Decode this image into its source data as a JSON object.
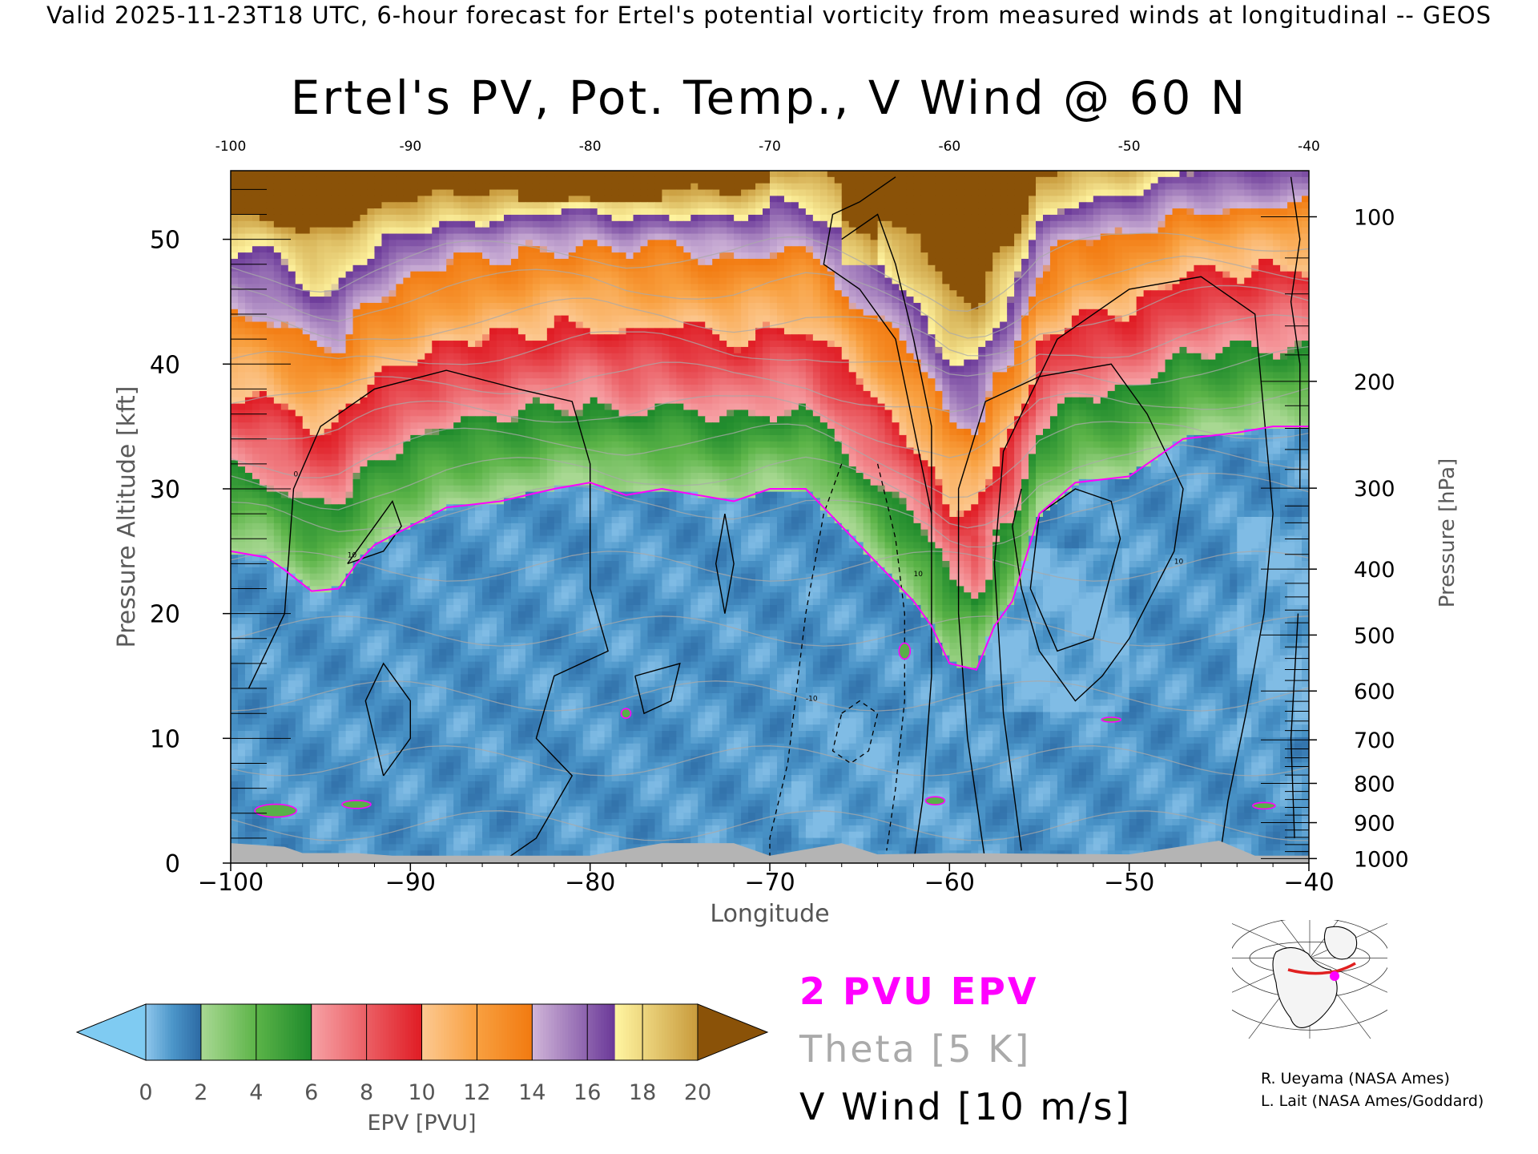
{
  "header": {
    "text": "Valid 2025-11-23T18 UTC, 6-hour forecast for Ertel's potential vorticity from measured winds at longitudinal -- GEOS"
  },
  "chart_data": {
    "type": "heatmap",
    "title": "Ertel's PV, Pot. Temp., V Wind @ 60 N",
    "xlabel": "Longitude",
    "ylabel": "Pressure Altitude [kft]",
    "y2label": "Pressure [hPa]",
    "xlim": [
      -100,
      -40
    ],
    "ylim": [
      0,
      55.5
    ],
    "x_ticks": [
      -100,
      -90,
      -80,
      -70,
      -60,
      -50,
      -40
    ],
    "x_tick_labels": [
      "−100",
      "−90",
      "−80",
      "−70",
      "−60",
      "−50",
      "−40"
    ],
    "top_x_tick_labels": [
      "-100",
      "-90",
      "-80",
      "-70",
      "-60",
      "-50",
      "-40"
    ],
    "y_ticks": [
      0,
      10,
      20,
      30,
      40,
      50
    ],
    "pressure_ticks": [
      {
        "hPa": 100,
        "label": "100"
      },
      {
        "hPa": 200,
        "label": "200"
      },
      {
        "hPa": 300,
        "label": "300"
      },
      {
        "hPa": 400,
        "label": "400"
      },
      {
        "hPa": 500,
        "label": "500"
      },
      {
        "hPa": 600,
        "label": "600"
      },
      {
        "hPa": 700,
        "label": "700"
      },
      {
        "hPa": 800,
        "label": "800"
      },
      {
        "hPa": 900,
        "label": "900"
      },
      {
        "hPa": 1000,
        "label": "1000"
      }
    ],
    "colorbar": {
      "label": "EPV [PVU]",
      "ticks": [
        0,
        2,
        4,
        6,
        8,
        10,
        12,
        14,
        16,
        18,
        20
      ],
      "under_color": "#7fcbf2",
      "over_color": "#8a5208",
      "stops": [
        {
          "v": 0,
          "c": "#8ec6ec"
        },
        {
          "v": 1,
          "c": "#4a94c8"
        },
        {
          "v": 2,
          "c": "#2c6aa4"
        },
        {
          "v": 2.05,
          "c": "#a8d892"
        },
        {
          "v": 4,
          "c": "#5cb448"
        },
        {
          "v": 6,
          "c": "#1e8a2c"
        },
        {
          "v": 6.05,
          "c": "#f6a0a4"
        },
        {
          "v": 10,
          "c": "#e01c24"
        },
        {
          "v": 10.05,
          "c": "#fcc890"
        },
        {
          "v": 12,
          "c": "#f8a040"
        },
        {
          "v": 14,
          "c": "#f27a10"
        },
        {
          "v": 14.05,
          "c": "#cfb4d8"
        },
        {
          "v": 17,
          "c": "#6a3898"
        },
        {
          "v": 17.05,
          "c": "#fff4a0"
        },
        {
          "v": 20,
          "c": "#c89a3c"
        }
      ]
    },
    "pv2_kft": [
      {
        "lon": -100,
        "kft": 25.0
      },
      {
        "lon": -98,
        "kft": 24.5
      },
      {
        "lon": -97,
        "kft": 23.5
      },
      {
        "lon": -95.5,
        "kft": 21.8
      },
      {
        "lon": -94,
        "kft": 22.0
      },
      {
        "lon": -93,
        "kft": 24.0
      },
      {
        "lon": -92,
        "kft": 25.5
      },
      {
        "lon": -90,
        "kft": 27.0
      },
      {
        "lon": -88,
        "kft": 28.5
      },
      {
        "lon": -85,
        "kft": 29.0
      },
      {
        "lon": -82,
        "kft": 30.0
      },
      {
        "lon": -80,
        "kft": 30.5
      },
      {
        "lon": -78,
        "kft": 29.5
      },
      {
        "lon": -76,
        "kft": 30.0
      },
      {
        "lon": -74,
        "kft": 29.5
      },
      {
        "lon": -72,
        "kft": 29.0
      },
      {
        "lon": -70,
        "kft": 30.0
      },
      {
        "lon": -68,
        "kft": 30.0
      },
      {
        "lon": -66,
        "kft": 27.0
      },
      {
        "lon": -64,
        "kft": 24.0
      },
      {
        "lon": -62,
        "kft": 21.0
      },
      {
        "lon": -61,
        "kft": 19.0
      },
      {
        "lon": -60,
        "kft": 16.0
      },
      {
        "lon": -58.5,
        "kft": 15.5
      },
      {
        "lon": -57.5,
        "kft": 19.0
      },
      {
        "lon": -56.5,
        "kft": 21.0
      },
      {
        "lon": -55,
        "kft": 28.0
      },
      {
        "lon": -53,
        "kft": 30.5
      },
      {
        "lon": -50,
        "kft": 31.0
      },
      {
        "lon": -47,
        "kft": 34.0
      },
      {
        "lon": -44,
        "kft": 34.5
      },
      {
        "lon": -42,
        "kft": 35.0
      },
      {
        "lon": -40,
        "kft": 35.0
      }
    ],
    "theta_K": [
      290,
      300,
      310,
      320,
      330,
      340,
      350,
      360,
      370,
      380,
      390,
      400,
      410,
      420
    ],
    "wind_contour_labels": [
      "0",
      "10",
      "-10"
    ],
    "terrain": [
      {
        "lon": -100,
        "kft": 1.6
      },
      {
        "lon": -97,
        "kft": 1.3
      },
      {
        "lon": -96,
        "kft": 0.8
      },
      {
        "lon": -93,
        "kft": 0.8
      },
      {
        "lon": -91,
        "kft": 0.6
      },
      {
        "lon": -85,
        "kft": 0.6
      },
      {
        "lon": -80,
        "kft": 0.6
      },
      {
        "lon": -76,
        "kft": 1.6
      },
      {
        "lon": -72,
        "kft": 1.6
      },
      {
        "lon": -70,
        "kft": 0.6
      },
      {
        "lon": -66,
        "kft": 1.6
      },
      {
        "lon": -64,
        "kft": 0.7
      },
      {
        "lon": -60,
        "kft": 0.8
      },
      {
        "lon": -50,
        "kft": 0.7
      },
      {
        "lon": -45,
        "kft": 1.8
      },
      {
        "lon": -43,
        "kft": 0.6
      },
      {
        "lon": -40,
        "kft": 0.6
      }
    ]
  },
  "legend": {
    "epv_label": "2 PVU EPV",
    "theta_label": "Theta [5 K]",
    "wind_label": "V Wind [10 m/s]",
    "epv_color": "#ff00ff",
    "theta_color": "#aaaaaa",
    "wind_color": "#000000"
  },
  "credits": {
    "line1": "R. Ueyama (NASA Ames)",
    "line2": "L. Lait (NASA Ames/Goddard)"
  }
}
